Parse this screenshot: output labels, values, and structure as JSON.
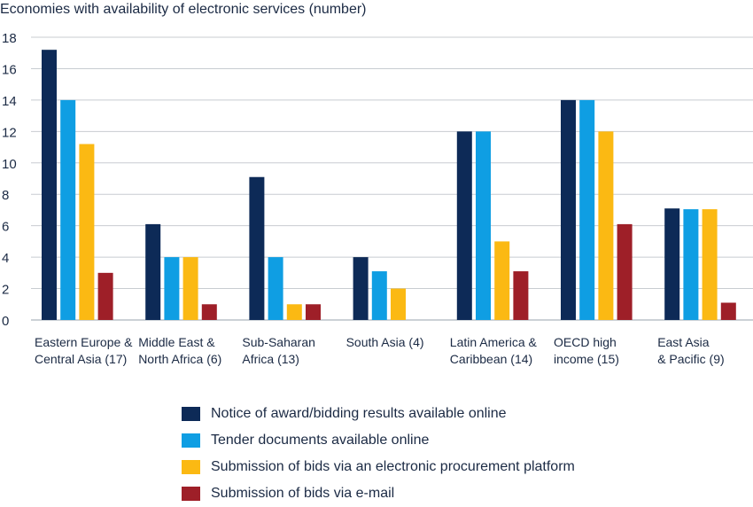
{
  "chart_data": {
    "type": "bar",
    "title": "Economies with availability of electronic services (number)",
    "xlabel": "",
    "ylabel": "",
    "ylim": [
      0,
      18
    ],
    "yticks": [
      0,
      2,
      4,
      6,
      8,
      10,
      12,
      14,
      16,
      18
    ],
    "grid": true,
    "legend_position": "bottom",
    "categories": [
      [
        "Eastern Europe &",
        "Central Asia (17)"
      ],
      [
        "Middle East &",
        "North Africa (6)"
      ],
      [
        "Sub-Saharan",
        "Africa (13)"
      ],
      [
        "South Asia (4)"
      ],
      [
        "Latin America &",
        "Caribbean (14)"
      ],
      [
        "OECD high",
        "income (15)"
      ],
      [
        "East Asia",
        "& Pacific (9)"
      ]
    ],
    "series": [
      {
        "name": "Notice of award/bidding results available online",
        "color": "#0d2a57",
        "values": [
          17.2,
          6.1,
          9.1,
          4,
          12,
          14,
          7.1
        ]
      },
      {
        "name": "Tender documents available online",
        "color": "#0f9ee3",
        "values": [
          14,
          4,
          4,
          3.1,
          12,
          14,
          7.05
        ]
      },
      {
        "name": "Submission of bids via an electronic procurement platform",
        "color": "#fbb913",
        "values": [
          11.2,
          4,
          1,
          2,
          5,
          12,
          7.05
        ]
      },
      {
        "name": "Submission of bids via e-mail",
        "color": "#9e1f28",
        "values": [
          3,
          1,
          1,
          0,
          3.1,
          6.1,
          1.1
        ]
      }
    ]
  }
}
